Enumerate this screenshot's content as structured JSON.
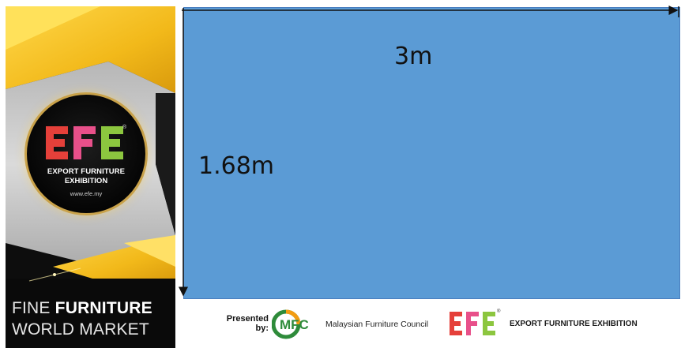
{
  "banner": {
    "logo_reg_mark": "®",
    "logo_line1": "EXPORT FURNITURE",
    "logo_line2": "EXHIBITION",
    "logo_url": "www.efe.my",
    "tagline1_light": "FINE ",
    "tagline1_bold": "FURNITURE",
    "tagline2": "WORLD MARKET"
  },
  "diagram": {
    "width_label": "3m",
    "height_label": "1.68m",
    "fill_color": "#5b9bd5"
  },
  "footer": {
    "presented_line1": "Presented",
    "presented_line2": "by:",
    "mfc_logo_text": "MFC",
    "mfc_name": "Malaysian Furniture Council",
    "efe_reg_mark": "®",
    "efe_name": "EXPORT FURNITURE EXHIBITION"
  },
  "colors": {
    "gold": "#f2c01e",
    "efe_red": "#e5403a",
    "efe_pink": "#e8508a",
    "efe_green": "#8cc63f",
    "mfc_green": "#2e8b3a",
    "mfc_orange": "#f39c12"
  }
}
